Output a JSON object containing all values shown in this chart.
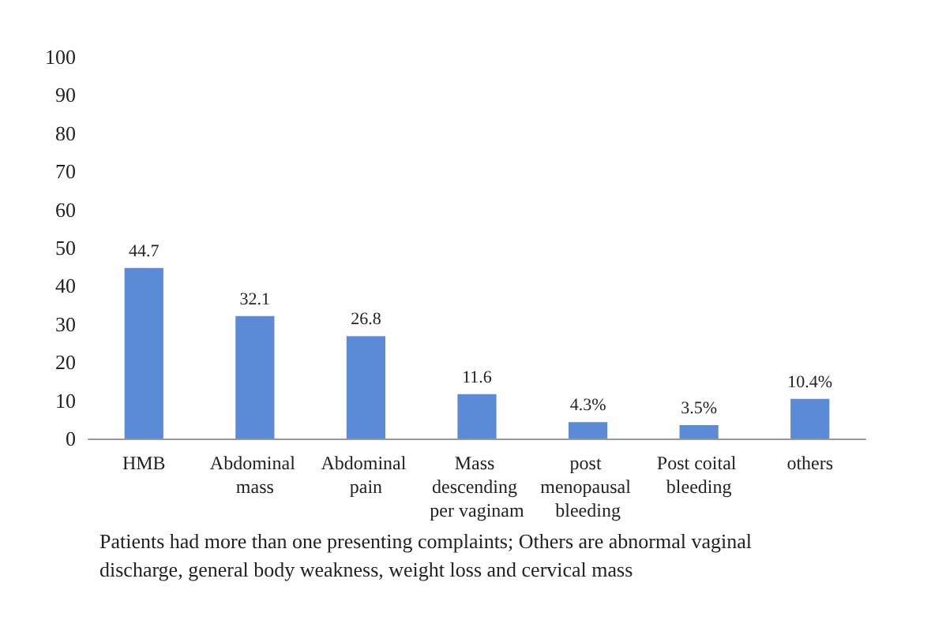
{
  "chart_data": {
    "type": "bar",
    "categories": [
      "HMB",
      "Abdominal mass",
      "Abdominal pain",
      "Mass descending per vaginam",
      "post menopausal bleeding",
      "Post coital bleeding",
      "others"
    ],
    "values": [
      44.7,
      32.1,
      26.8,
      11.6,
      4.3,
      3.5,
      10.4
    ],
    "value_labels": [
      "44.7",
      "32.1",
      "26.8",
      "11.6",
      "4.3%",
      "3.5%",
      "10.4%"
    ],
    "color": "#5b8ad6",
    "ylim": [
      0,
      100
    ],
    "yticks": [
      0,
      10,
      20,
      30,
      40,
      50,
      60,
      70,
      80,
      90,
      100
    ],
    "grid": false,
    "annotations": [
      "Patients had more than one presenting complaints; Others are abnormal vaginal discharge, general body weakness, weight loss and cervical mass"
    ]
  }
}
